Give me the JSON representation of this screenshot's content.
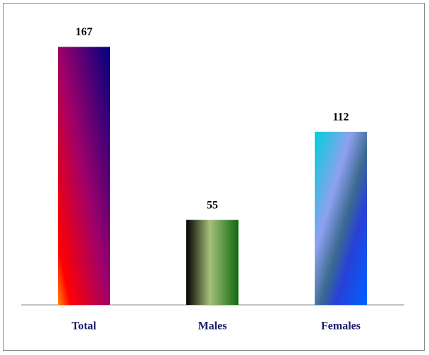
{
  "chart_data": {
    "type": "bar",
    "categories": [
      "Total",
      "Males",
      "Females"
    ],
    "values": [
      167,
      55,
      112
    ],
    "ylim": [
      0,
      180
    ]
  }
}
